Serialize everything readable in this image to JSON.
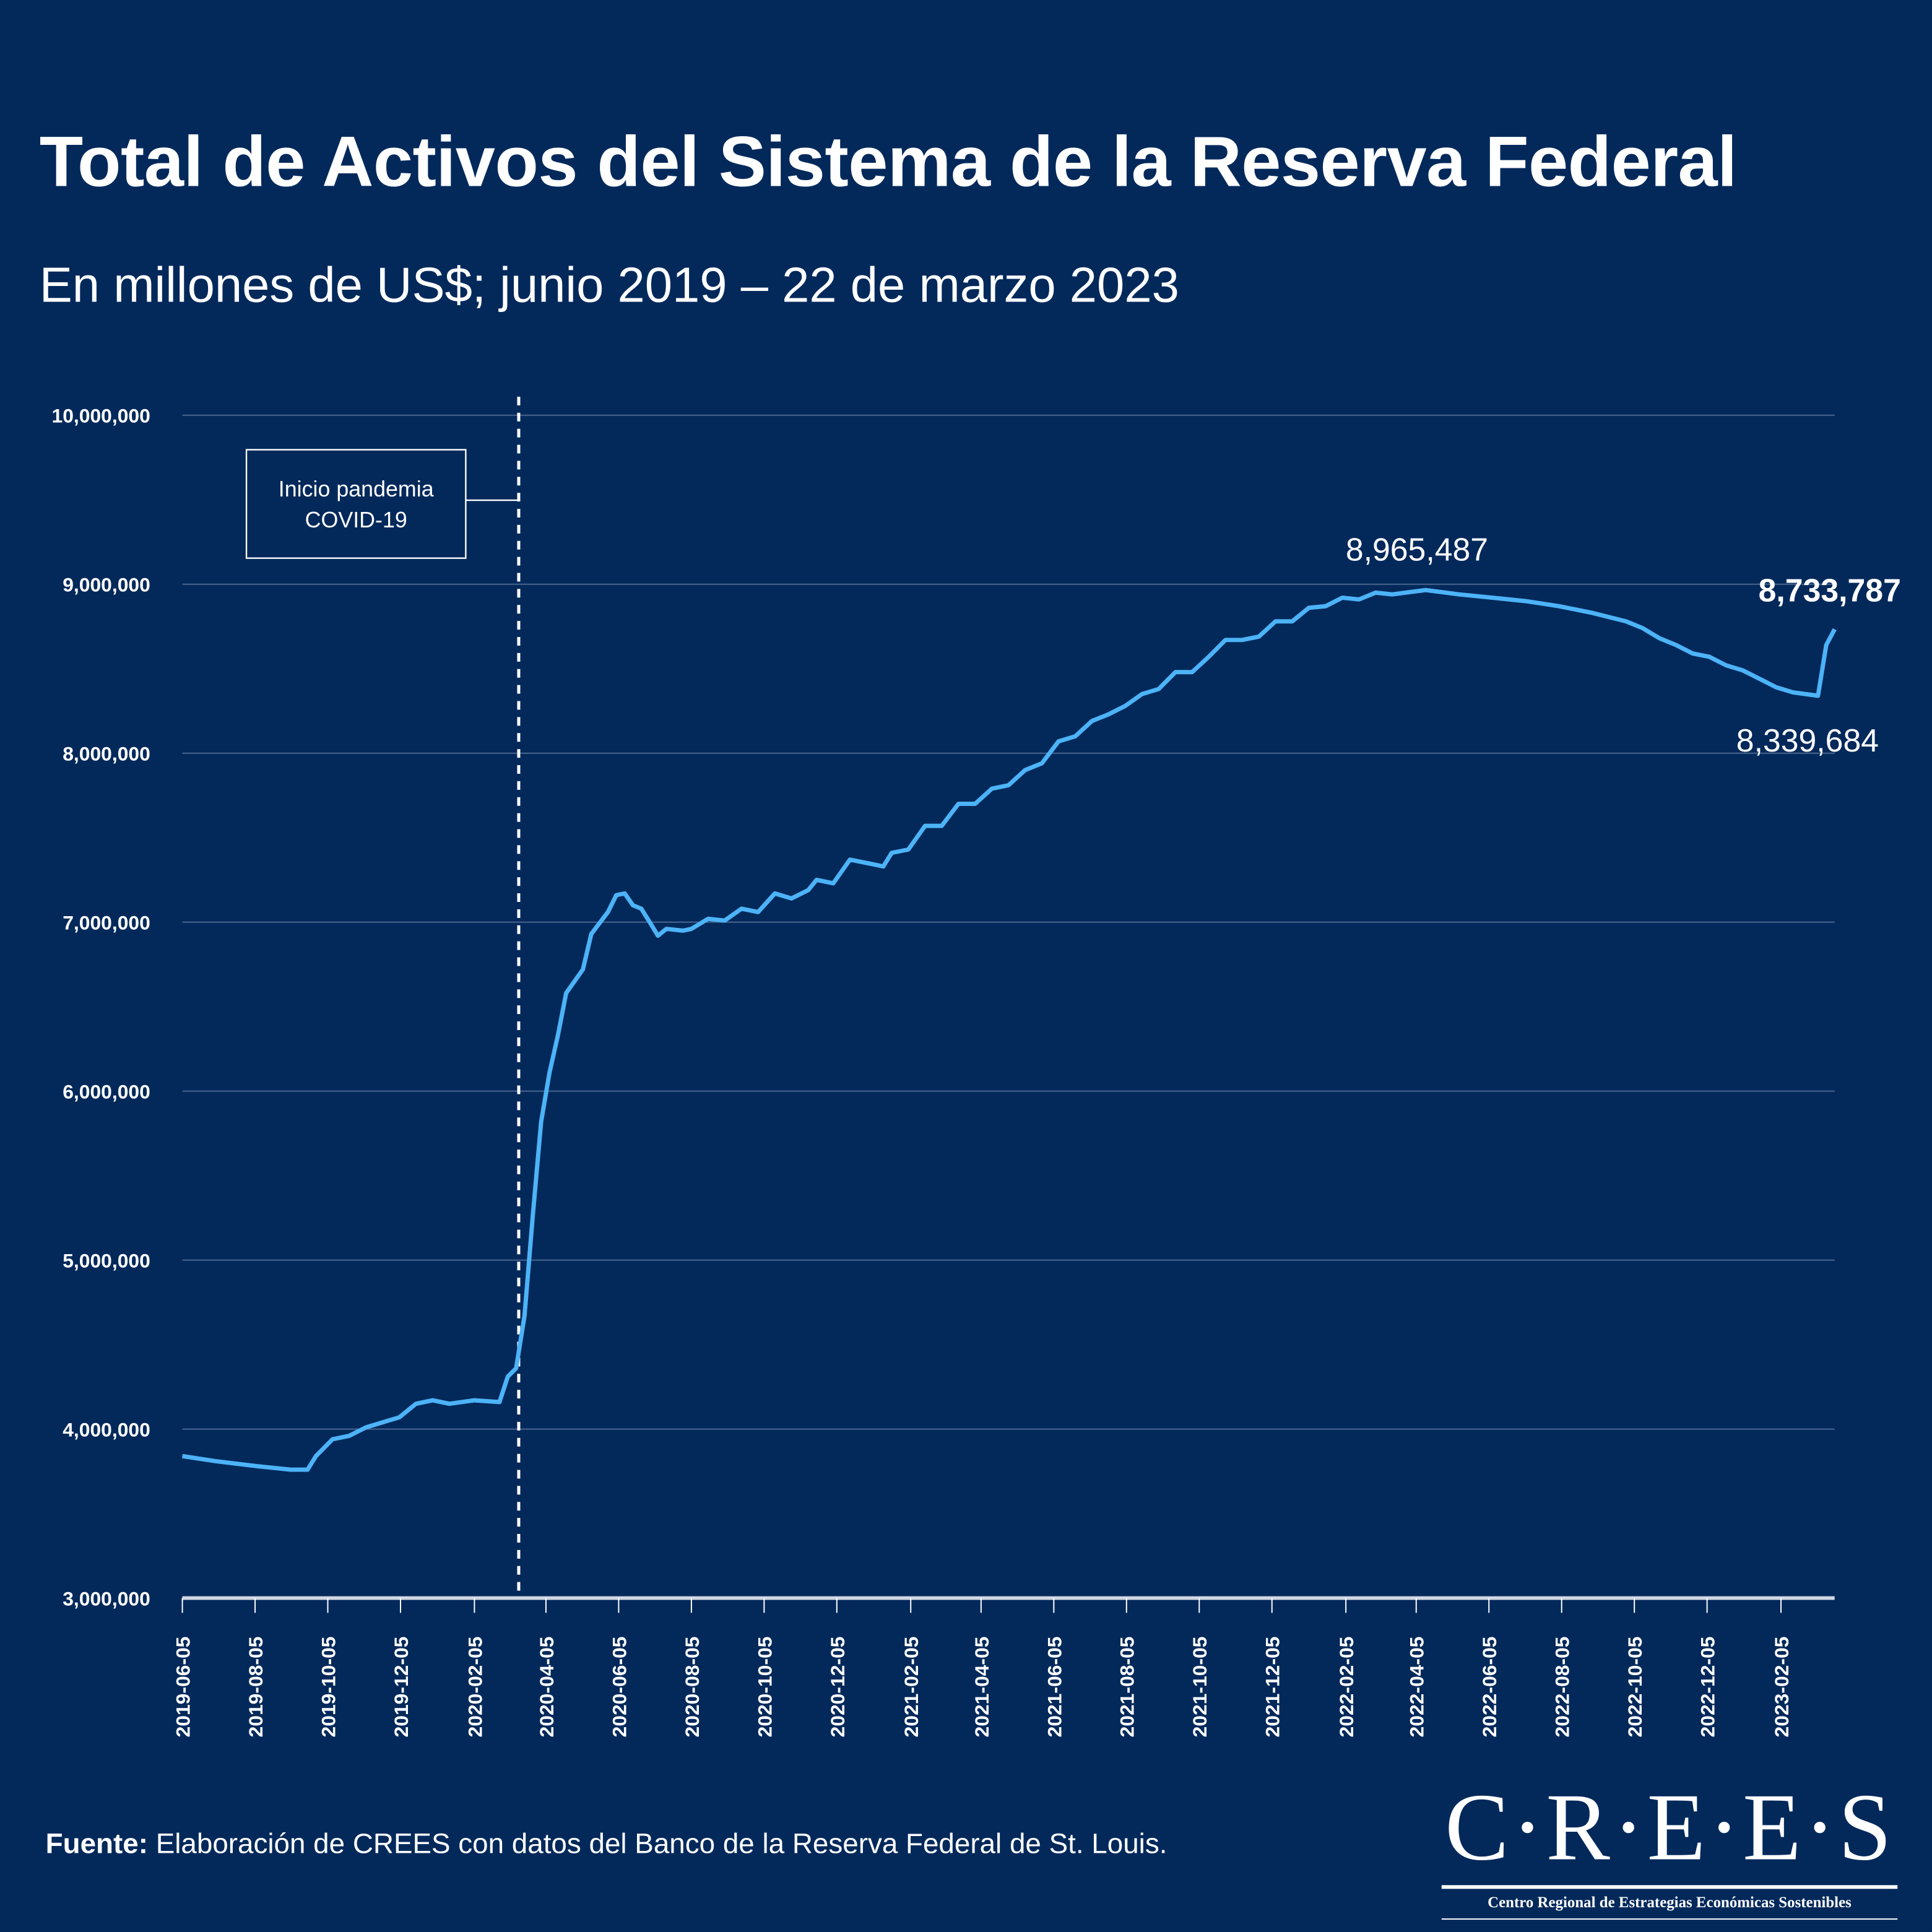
{
  "title": "Total de Activos del Sistema de la Reserva Federal",
  "subtitle": "En millones de US$; junio 2019 – 22 de marzo 2023",
  "source": {
    "label": "Fuente:",
    "text": " Elaboración de CREES con datos del Banco de la Reserva Federal de St. Louis."
  },
  "logo": {
    "name": "C·R·E·E·S",
    "tagline": "Centro Regional de Estrategias Económicas Sostenibles"
  },
  "colors": {
    "background": "#03295b",
    "line": "#4db3f7",
    "grid": "#4a6690",
    "text": "#ffffff"
  },
  "chart_data": {
    "type": "line",
    "title": "Total de Activos del Sistema de la Reserva Federal",
    "subtitle": "En millones de US$; junio 2019 – 22 de marzo 2023",
    "ylim": [
      3000000,
      10000000
    ],
    "yticks": [
      "3,000,000",
      "4,000,000",
      "5,000,000",
      "6,000,000",
      "7,000,000",
      "8,000,000",
      "9,000,000",
      "10,000,000"
    ],
    "xticks": [
      "2019-06-05",
      "2019-08-05",
      "2019-10-05",
      "2019-12-05",
      "2020-02-05",
      "2020-04-05",
      "2020-06-05",
      "2020-08-05",
      "2020-10-05",
      "2020-12-05",
      "2021-02-05",
      "2021-04-05",
      "2021-06-05",
      "2021-08-05",
      "2021-10-05",
      "2021-12-05",
      "2022-02-05",
      "2022-04-05",
      "2022-06-05",
      "2022-08-05",
      "2022-10-05",
      "2022-12-05",
      "2023-02-05"
    ],
    "grid": true,
    "series": [
      {
        "x": [
          "2019-06-05",
          "2019-07-03",
          "2019-08-07",
          "2019-09-04",
          "2019-09-18",
          "2019-09-25",
          "2019-10-09",
          "2019-10-23",
          "2019-11-06",
          "2019-11-20",
          "2019-12-04",
          "2019-12-18",
          "2020-01-01",
          "2020-01-15",
          "2020-02-05",
          "2020-02-26",
          "2020-03-04",
          "2020-03-11",
          "2020-03-18",
          "2020-03-25",
          "2020-04-01",
          "2020-04-08",
          "2020-04-15",
          "2020-04-22",
          "2020-05-06",
          "2020-05-13",
          "2020-05-27",
          "2020-06-03",
          "2020-06-10",
          "2020-06-17",
          "2020-06-24",
          "2020-07-01",
          "2020-07-08",
          "2020-07-15",
          "2020-07-29",
          "2020-08-05",
          "2020-08-19",
          "2020-09-02",
          "2020-09-16",
          "2020-09-30",
          "2020-10-14",
          "2020-10-28",
          "2020-11-11",
          "2020-11-18",
          "2020-12-02",
          "2020-12-16",
          "2020-12-30",
          "2021-01-13",
          "2021-01-20",
          "2021-02-03",
          "2021-02-17",
          "2021-03-03",
          "2021-03-17",
          "2021-03-31",
          "2021-04-14",
          "2021-04-28",
          "2021-05-12",
          "2021-05-26",
          "2021-06-09",
          "2021-06-23",
          "2021-07-07",
          "2021-07-21",
          "2021-08-04",
          "2021-08-18",
          "2021-09-01",
          "2021-09-15",
          "2021-09-29",
          "2021-10-13",
          "2021-10-27",
          "2021-11-10",
          "2021-11-24",
          "2021-12-08",
          "2021-12-22",
          "2022-01-05",
          "2022-01-19",
          "2022-02-02",
          "2022-02-16",
          "2022-03-02",
          "2022-03-16",
          "2022-04-13",
          "2022-05-11",
          "2022-06-08",
          "2022-07-06",
          "2022-08-03",
          "2022-08-31",
          "2022-09-28",
          "2022-10-12",
          "2022-10-26",
          "2022-11-09",
          "2022-11-23",
          "2022-12-07",
          "2022-12-21",
          "2023-01-04",
          "2023-01-18",
          "2023-02-01",
          "2023-02-15",
          "2023-03-08",
          "2023-03-15",
          "2023-03-22"
        ],
        "y": [
          3840000,
          3810000,
          3780000,
          3760000,
          3760000,
          3840000,
          3940000,
          3960000,
          4010000,
          4040000,
          4070000,
          4150000,
          4170000,
          4150000,
          4170000,
          4160000,
          4310000,
          4360000,
          4670000,
          5270000,
          5820000,
          6110000,
          6330000,
          6580000,
          6720000,
          6930000,
          7060000,
          7160000,
          7170000,
          7100000,
          7080000,
          7000000,
          6920000,
          6960000,
          6950000,
          6960000,
          7020000,
          7010000,
          7080000,
          7060000,
          7170000,
          7140000,
          7190000,
          7250000,
          7230000,
          7370000,
          7350000,
          7330000,
          7410000,
          7430000,
          7570000,
          7570000,
          7700000,
          7700000,
          7790000,
          7810000,
          7900000,
          7940000,
          8070000,
          8100000,
          8190000,
          8230000,
          8280000,
          8350000,
          8380000,
          8480000,
          8480000,
          8570000,
          8670000,
          8670000,
          8690000,
          8780000,
          8780000,
          8860000,
          8870000,
          8920000,
          8910000,
          8950000,
          8940000,
          8965487,
          8940000,
          8920000,
          8900000,
          8870000,
          8830000,
          8780000,
          8740000,
          8680000,
          8640000,
          8590000,
          8570000,
          8520000,
          8490000,
          8440000,
          8390000,
          8360000,
          8339684,
          8640000,
          8733787
        ]
      }
    ],
    "annotations": [
      {
        "text": "Inicio pandemia COVID-19",
        "lines": [
          "Inicio pandemia",
          "COVID-19"
        ],
        "x": "2020-03-11"
      },
      {
        "text": "8,965,487",
        "x": "2022-04-13",
        "y": 8965487
      },
      {
        "text": "8,733,787",
        "x": "2023-03-22",
        "y": 8733787,
        "bold": true
      },
      {
        "text": "8,339,684",
        "x": "2023-03-08",
        "y": 8339684
      }
    ]
  }
}
